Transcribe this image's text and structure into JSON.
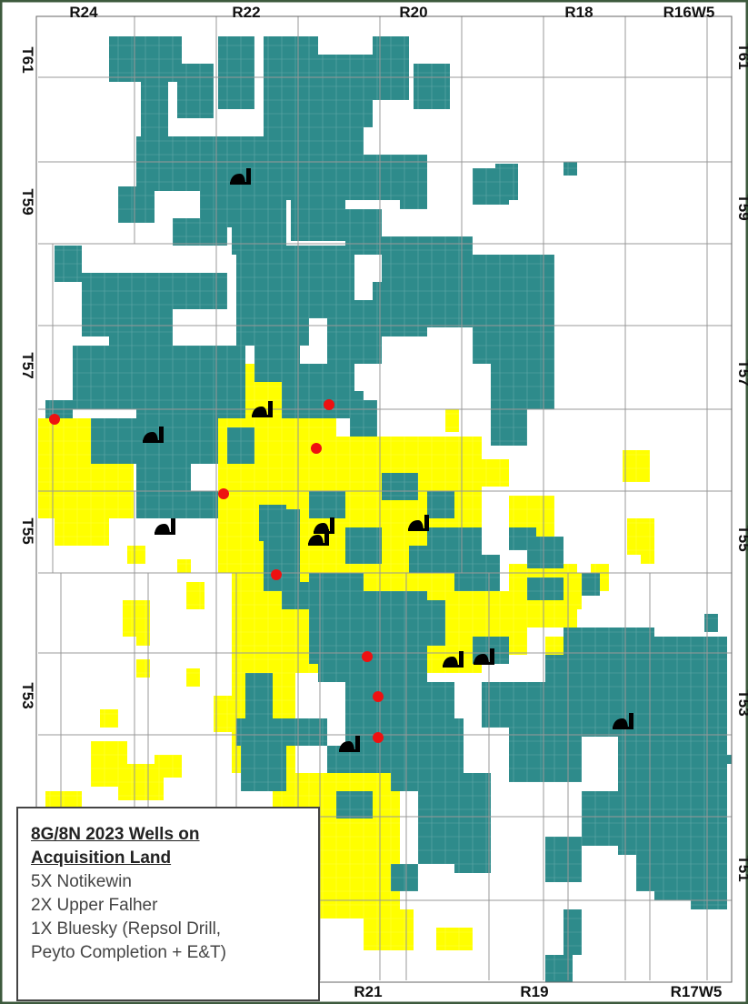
{
  "map": {
    "range_labels_top": [
      "R24",
      "R22",
      "R20",
      "R18",
      "R16W5"
    ],
    "range_labels_bottom": [
      "R21",
      "R19",
      "R17W5"
    ],
    "township_labels_left": [
      "T61",
      "T59",
      "T57",
      "T55",
      "T53"
    ],
    "township_labels_right": [
      "T61",
      "T59",
      "T57",
      "T55",
      "T53",
      "T51"
    ],
    "colors": {
      "land_teal": "#2e8b8b",
      "land_teal_light": "#3a9a9a",
      "acquisition_yellow": "#ffff00",
      "well_red": "#ee1111",
      "pumpjack_black": "#000000",
      "grid_gray": "#999999",
      "border": "#3d5a3d"
    },
    "icons": [
      "pumpjack-icon",
      "well-dot-icon"
    ]
  },
  "legend": {
    "title_line1": "8G/8N 2023 Wells on",
    "title_line2": "Acquisition Land",
    "items": [
      "5X Notikewin",
      "2X Upper Falher",
      "1X Bluesky (Repsol Drill,",
      "Peyto Completion + E&T)"
    ]
  }
}
